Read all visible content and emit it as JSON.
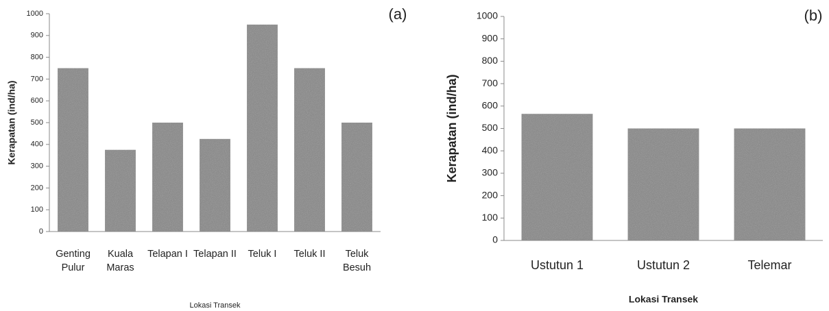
{
  "chart_data": [
    {
      "type": "bar",
      "panel_label": "(a)",
      "ylabel": "Kerapatan (ind/ha)",
      "xlabel": "Lokasi Transek",
      "categories": [
        "Genting Pulur",
        "Kuala Maras",
        "Telapan I",
        "Telapan II",
        "Teluk I",
        "Teluk II",
        "Teluk Besuh"
      ],
      "values": [
        750,
        375,
        500,
        425,
        950,
        750,
        500
      ],
      "color": "#8c8c8c",
      "ylim": [
        0,
        1000
      ],
      "yticks": [
        0,
        100,
        200,
        300,
        400,
        500,
        600,
        700,
        800,
        900,
        1000
      ]
    },
    {
      "type": "bar",
      "panel_label": "(b)",
      "ylabel": "Kerapatan (ind/ha)",
      "xlabel": "Lokasi Transek",
      "categories": [
        "Ustutun 1",
        "Ustutun 2",
        "Telemar"
      ],
      "values": [
        565,
        500,
        500
      ],
      "color": "#8c8c8c",
      "ylim": [
        0,
        1000
      ],
      "yticks": [
        0,
        100,
        200,
        300,
        400,
        500,
        600,
        700,
        800,
        900,
        1000
      ]
    }
  ]
}
